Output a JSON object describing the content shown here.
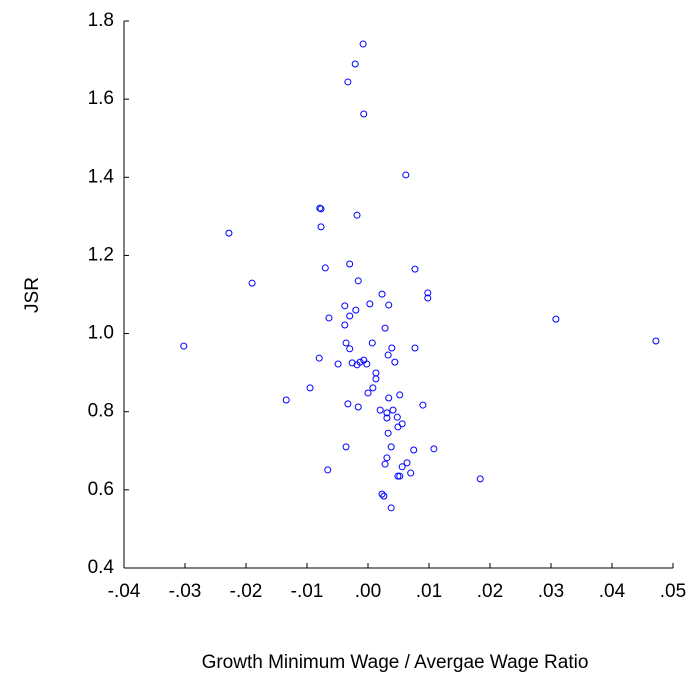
{
  "chart_data": {
    "type": "scatter",
    "x_label": "Growth Minimum Wage / Avergae Wage Ratio",
    "y_label": "JSR",
    "color": "#0000ff",
    "xlim": [
      -0.04,
      0.05
    ],
    "ylim": [
      0.4,
      1.8
    ],
    "xticks": [
      {
        "value": -0.04,
        "label": "-.04"
      },
      {
        "value": -0.03,
        "label": "-.03"
      },
      {
        "value": -0.02,
        "label": "-.02"
      },
      {
        "value": -0.01,
        "label": "-.01"
      },
      {
        "value": 0,
        "label": ".00"
      },
      {
        "value": 0.01,
        "label": ".01"
      },
      {
        "value": 0.02,
        "label": ".02"
      },
      {
        "value": 0.03,
        "label": ".03"
      },
      {
        "value": 0.04,
        "label": ".04"
      },
      {
        "value": 0.05,
        "label": ".05"
      }
    ],
    "yticks": [
      0.4,
      0.6,
      0.8,
      {
        "value": 1,
        "label": "1.0"
      },
      1.2,
      1.4,
      1.6,
      1.8
    ],
    "x": [
      -0.0008,
      -0.0021,
      -0.0033,
      -0.0007,
      0.0062,
      -0.0077,
      -0.0079,
      -0.0018,
      -0.0077,
      -0.0228,
      -0.019,
      -0.007,
      -0.003,
      -0.0016,
      0.0077,
      0.0023,
      0.0098,
      0.0098,
      0.0308,
      0.0472,
      -0.0302,
      -0.0038,
      0.0003,
      0.0034,
      -0.002,
      -0.003,
      -0.0064,
      -0.0038,
      0.0028,
      -0.0036,
      0.0007,
      -0.003,
      0.0039,
      0.0077,
      0.0033,
      -0.008,
      -0.0007,
      -0.0013,
      -0.0026,
      -0.0002,
      -0.0049,
      -0.0018,
      0.0044,
      0.0013,
      0.0013,
      -0.0095,
      0.0008,
      0,
      0.0052,
      0.0034,
      -0.0134,
      -0.0033,
      0.009,
      -0.0016,
      0.002,
      0.0031,
      0.0041,
      0.0031,
      0.0048,
      0.0056,
      0.0049,
      0.0033,
      -0.0036,
      0.0038,
      0.0108,
      0.0075,
      0.0031,
      0.0064,
      0.0028,
      -0.0066,
      0.0056,
      0.007,
      0.0052,
      0.0049,
      0.0184,
      0.0023,
      0.0026,
      0.0038
    ],
    "y": [
      1.741,
      1.69,
      1.644,
      1.562,
      1.406,
      1.319,
      1.321,
      1.303,
      1.273,
      1.257,
      1.129,
      1.168,
      1.178,
      1.135,
      1.165,
      1.101,
      1.104,
      1.091,
      1.037,
      0.981,
      0.968,
      1.071,
      1.076,
      1.073,
      1.06,
      1.045,
      1.04,
      1.022,
      1.014,
      0.976,
      0.976,
      0.961,
      0.963,
      0.963,
      0.945,
      0.937,
      0.932,
      0.927,
      0.925,
      0.922,
      0.922,
      0.92,
      0.927,
      0.899,
      0.884,
      0.861,
      0.861,
      0.848,
      0.843,
      0.835,
      0.83,
      0.82,
      0.817,
      0.812,
      0.804,
      0.797,
      0.804,
      0.784,
      0.786,
      0.769,
      0.761,
      0.745,
      0.71,
      0.71,
      0.705,
      0.702,
      0.682,
      0.669,
      0.666,
      0.651,
      0.659,
      0.643,
      0.635,
      0.635,
      0.628,
      0.589,
      0.584,
      0.554
    ]
  }
}
